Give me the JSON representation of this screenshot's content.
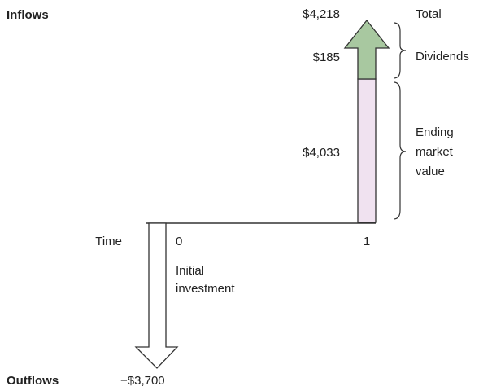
{
  "inflows_label": "Inflows",
  "outflows_label": "Outflows",
  "time_label": "Time",
  "periods": [
    "0",
    "1"
  ],
  "inflow": {
    "total": "$4,218",
    "dividends": "$185",
    "ending_value": "$4,033"
  },
  "outflow": {
    "amount": "−$3,700",
    "label": [
      "Initial",
      "investment"
    ]
  },
  "annotations": {
    "total": "Total",
    "dividends": "Dividends",
    "ending_value": [
      "Ending",
      "market",
      "value"
    ]
  }
}
